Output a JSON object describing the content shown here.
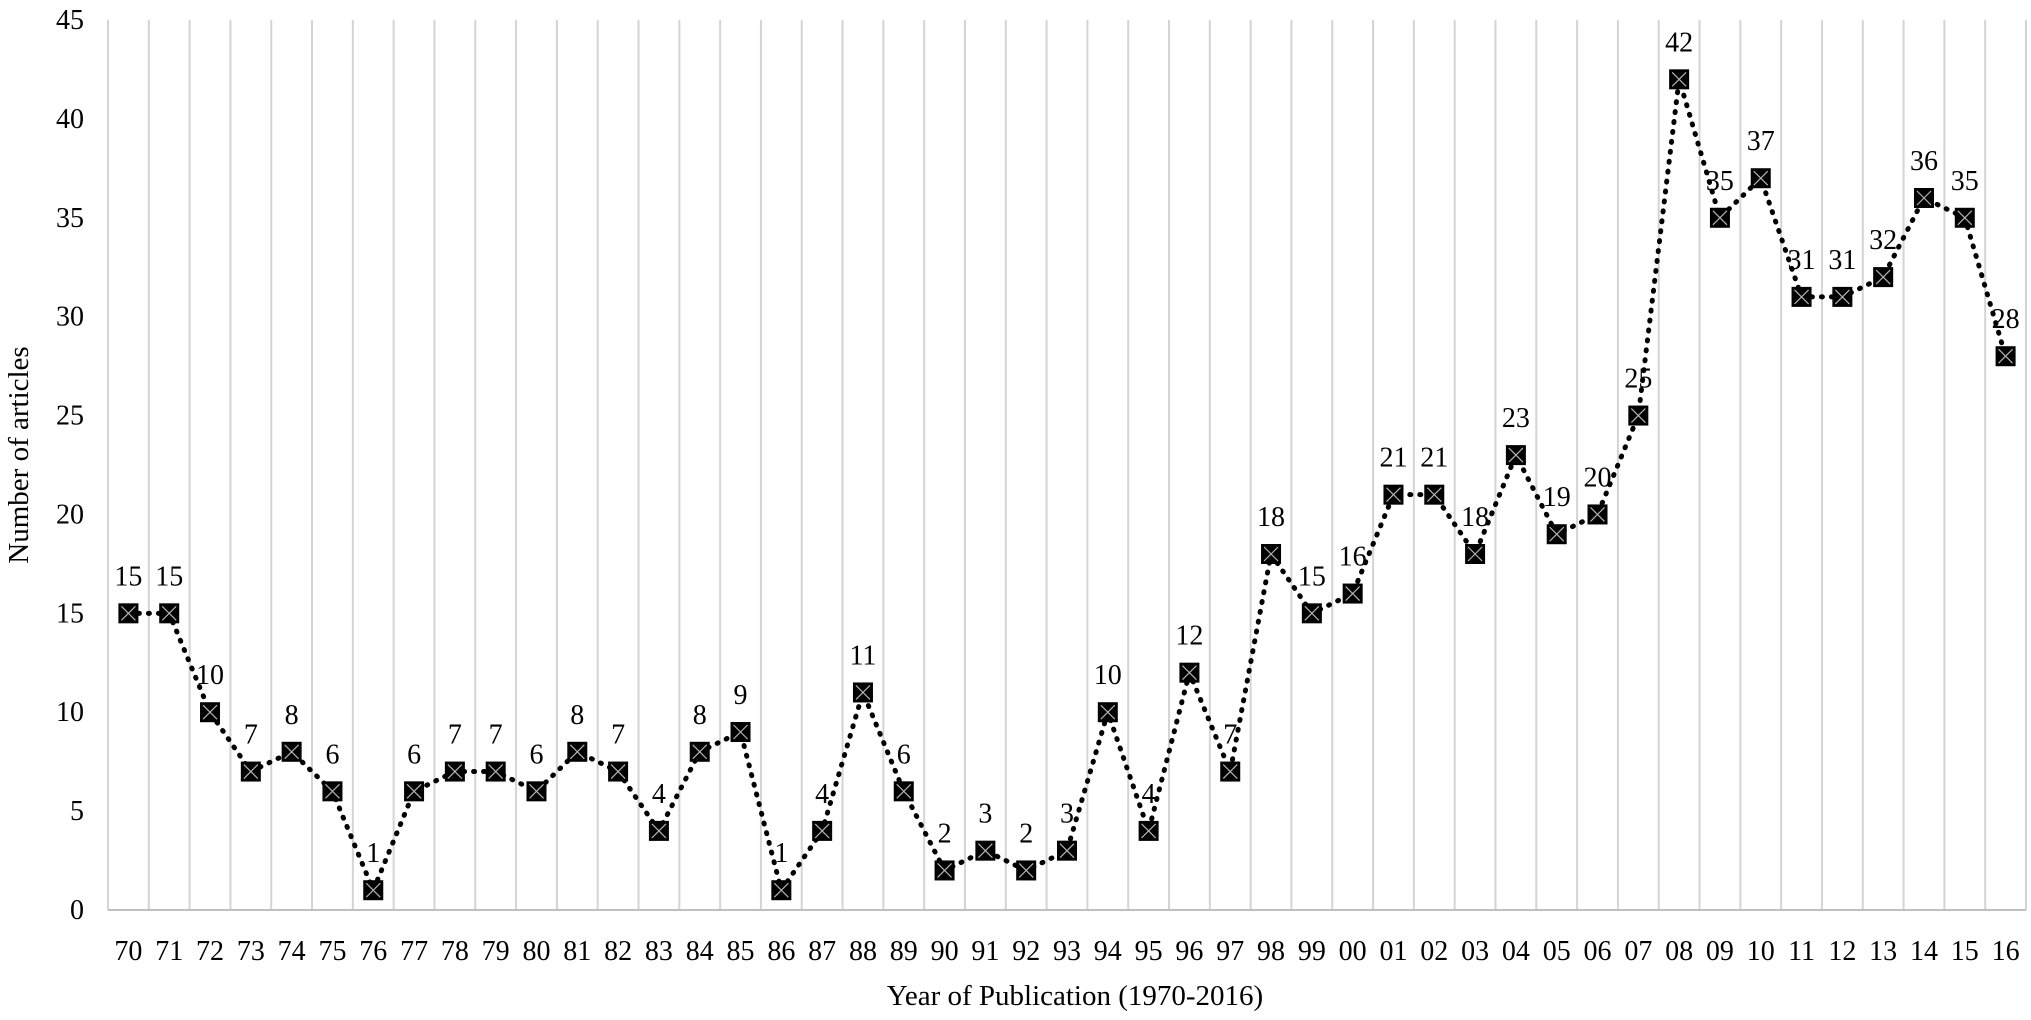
{
  "chart_data": {
    "type": "line",
    "categories": [
      "70",
      "71",
      "72",
      "73",
      "74",
      "75",
      "76",
      "77",
      "78",
      "79",
      "80",
      "81",
      "82",
      "83",
      "84",
      "85",
      "86",
      "87",
      "88",
      "89",
      "90",
      "91",
      "92",
      "93",
      "94",
      "95",
      "96",
      "97",
      "98",
      "99",
      "00",
      "01",
      "02",
      "03",
      "04",
      "05",
      "06",
      "07",
      "08",
      "09",
      "10",
      "11",
      "12",
      "13",
      "14",
      "15",
      "16"
    ],
    "series": [
      {
        "values": [
          15,
          15,
          10,
          7,
          8,
          6,
          1,
          6,
          7,
          7,
          6,
          8,
          7,
          4,
          8,
          9,
          1,
          4,
          11,
          6,
          2,
          3,
          2,
          3,
          10,
          4,
          12,
          7,
          18,
          15,
          16,
          21,
          21,
          18,
          23,
          19,
          20,
          25,
          42,
          35,
          37,
          31,
          31,
          32,
          36,
          35,
          28
        ],
        "marker": "square",
        "line_style": "dotted",
        "color": "#000000"
      }
    ],
    "data_labels": [
      "15",
      "15",
      "10",
      "7",
      "8",
      "6",
      "1",
      "6",
      "7",
      "7",
      "6",
      "8",
      "7",
      "4",
      "8",
      "9",
      "1",
      "4",
      "11",
      "6",
      "2",
      "3",
      "2",
      "3",
      "10",
      "4",
      "12",
      "7",
      "18",
      "15",
      "16",
      "21",
      "21",
      "18",
      "23",
      "19",
      "20",
      "25",
      "42",
      "35",
      "37",
      "31",
      "31",
      "32",
      "36",
      "35",
      "28"
    ],
    "xlabel": "Year of Publication (1970-2016)",
    "ylabel": "Number of articles",
    "ylim": [
      0,
      45
    ],
    "yticks": [
      "0",
      "5",
      "10",
      "15",
      "20",
      "25",
      "30",
      "35",
      "40",
      "45"
    ],
    "grid": "vertical",
    "colors": {
      "grid": "#d4d4d4",
      "series": "#000000"
    }
  }
}
